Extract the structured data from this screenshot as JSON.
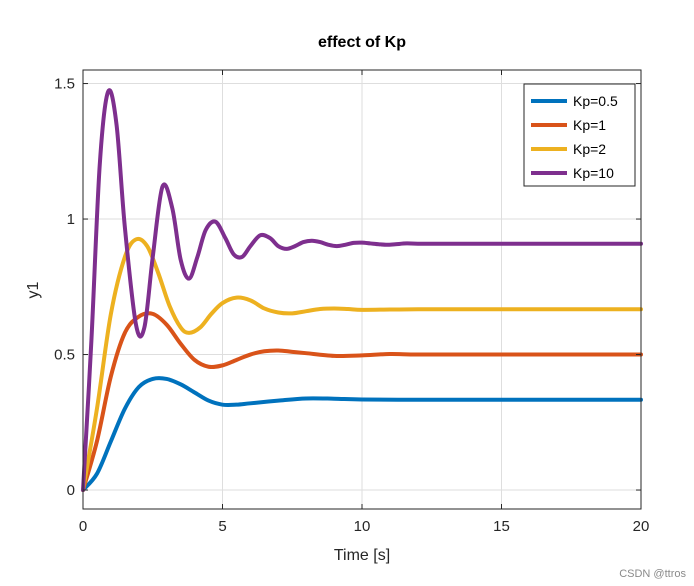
{
  "chart_data": {
    "type": "line",
    "title": "effect of Kp",
    "xlabel": "Time [s]",
    "ylabel": "y1",
    "xlim": [
      0,
      20
    ],
    "ylim": [
      -0.07,
      1.55
    ],
    "xticks": [
      0,
      5,
      10,
      15,
      20
    ],
    "xtick_labels": [
      "0",
      "5",
      "10",
      "15",
      "20"
    ],
    "yticks": [
      0,
      0.5,
      1,
      1.5
    ],
    "ytick_labels": [
      "0",
      "0.5",
      "1",
      "1.5"
    ],
    "grid": true,
    "legend_location": "top-right",
    "series": [
      {
        "name": "Kp=0.5",
        "color": "#0072bd",
        "x": [
          0,
          0.5,
          1,
          1.5,
          2,
          2.5,
          3,
          3.5,
          4,
          4.5,
          5,
          5.5,
          6,
          7,
          8,
          9,
          10,
          12,
          14,
          16,
          18,
          20
        ],
        "y": [
          0,
          0.06,
          0.18,
          0.3,
          0.38,
          0.41,
          0.41,
          0.39,
          0.36,
          0.33,
          0.315,
          0.315,
          0.32,
          0.33,
          0.338,
          0.337,
          0.334,
          0.333,
          0.333,
          0.333,
          0.333,
          0.333
        ]
      },
      {
        "name": "Kp=1",
        "color": "#d95319",
        "x": [
          0,
          0.5,
          1,
          1.5,
          2,
          2.5,
          3,
          3.5,
          4,
          4.5,
          5,
          5.5,
          6,
          6.5,
          7,
          7.5,
          8,
          9,
          10,
          11,
          12,
          14,
          16,
          18,
          20
        ],
        "y": [
          0,
          0.18,
          0.42,
          0.58,
          0.64,
          0.65,
          0.61,
          0.54,
          0.48,
          0.455,
          0.46,
          0.48,
          0.5,
          0.512,
          0.515,
          0.51,
          0.505,
          0.495,
          0.497,
          0.502,
          0.5,
          0.5,
          0.5,
          0.5,
          0.5
        ]
      },
      {
        "name": "Kp=2",
        "color": "#edb120",
        "x": [
          0,
          0.5,
          1,
          1.5,
          1.9,
          2.3,
          2.7,
          3.1,
          3.5,
          3.8,
          4.2,
          4.6,
          5,
          5.5,
          6,
          6.5,
          7,
          7.5,
          8,
          8.5,
          9,
          9.5,
          10,
          11,
          12,
          13,
          14,
          16,
          18,
          20
        ],
        "y": [
          0,
          0.3,
          0.65,
          0.86,
          0.925,
          0.9,
          0.8,
          0.68,
          0.6,
          0.58,
          0.6,
          0.65,
          0.69,
          0.71,
          0.7,
          0.67,
          0.655,
          0.652,
          0.66,
          0.668,
          0.67,
          0.668,
          0.665,
          0.666,
          0.667,
          0.667,
          0.667,
          0.667,
          0.667,
          0.667
        ]
      },
      {
        "name": "Kp=10",
        "color": "#7e2f8e",
        "x": [
          0,
          0.3,
          0.6,
          0.9,
          1.2,
          1.5,
          1.9,
          2.2,
          2.5,
          2.85,
          3.2,
          3.5,
          3.8,
          4.1,
          4.4,
          4.75,
          5.1,
          5.4,
          5.7,
          6.0,
          6.35,
          6.7,
          7.0,
          7.3,
          7.6,
          7.9,
          8.2,
          8.5,
          8.8,
          9.1,
          9.4,
          9.7,
          10.0,
          10.3,
          10.6,
          10.9,
          11.2,
          11.6,
          12,
          13,
          14,
          16,
          18,
          20
        ],
        "y": [
          0,
          0.55,
          1.2,
          1.47,
          1.35,
          0.97,
          0.61,
          0.6,
          0.86,
          1.12,
          1.04,
          0.85,
          0.78,
          0.86,
          0.96,
          0.99,
          0.93,
          0.87,
          0.86,
          0.9,
          0.94,
          0.93,
          0.9,
          0.89,
          0.9,
          0.915,
          0.92,
          0.915,
          0.905,
          0.9,
          0.905,
          0.912,
          0.913,
          0.91,
          0.907,
          0.905,
          0.907,
          0.91,
          0.909,
          0.909,
          0.909,
          0.909,
          0.909,
          0.909
        ]
      }
    ]
  },
  "watermark": "CSDN @ttros"
}
